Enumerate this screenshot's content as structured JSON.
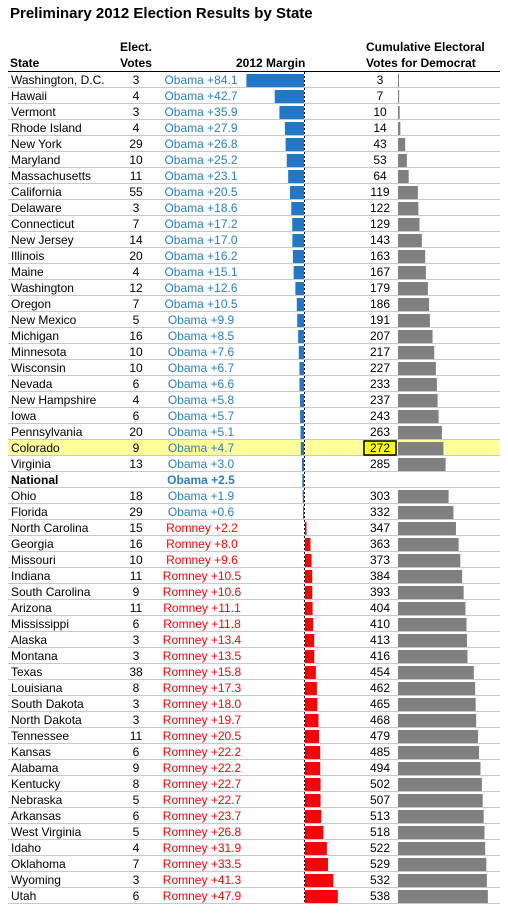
{
  "title": "Preliminary 2012 Election Results by State",
  "headers": {
    "state": "State",
    "votes_line1": "Elect.",
    "votes_line2": "Votes",
    "margin": "2012 Margin",
    "cumulative_line1": "Cumulative Electoral",
    "cumulative_line2": "Votes for Democrat"
  },
  "colors": {
    "obama": "#1f78c8",
    "obama_text": "#2a7fc9",
    "romney": "#ff0000",
    "cumulative_bar": "#808080",
    "highlight": "#ffff99",
    "highlight_box": "#ffff00"
  },
  "chart_data": {
    "type": "table",
    "columns": [
      "State",
      "Elect. Votes",
      "2012 Margin",
      "Cumulative Electoral Votes for Democrat"
    ],
    "rows": [
      {
        "state": "Washington, D.C.",
        "votes": 3,
        "party": "Obama",
        "margin": 84.1,
        "label": "Obama +84.1",
        "cumulative": 3
      },
      {
        "state": "Hawaii",
        "votes": 4,
        "party": "Obama",
        "margin": 42.7,
        "label": "Obama +42.7",
        "cumulative": 7
      },
      {
        "state": "Vermont",
        "votes": 3,
        "party": "Obama",
        "margin": 35.9,
        "label": "Obama +35.9",
        "cumulative": 10
      },
      {
        "state": "Rhode Island",
        "votes": 4,
        "party": "Obama",
        "margin": 27.9,
        "label": "Obama +27.9",
        "cumulative": 14
      },
      {
        "state": "New York",
        "votes": 29,
        "party": "Obama",
        "margin": 26.8,
        "label": "Obama +26.8",
        "cumulative": 43
      },
      {
        "state": "Maryland",
        "votes": 10,
        "party": "Obama",
        "margin": 25.2,
        "label": "Obama +25.2",
        "cumulative": 53
      },
      {
        "state": "Massachusetts",
        "votes": 11,
        "party": "Obama",
        "margin": 23.1,
        "label": "Obama +23.1",
        "cumulative": 64
      },
      {
        "state": "California",
        "votes": 55,
        "party": "Obama",
        "margin": 20.5,
        "label": "Obama +20.5",
        "cumulative": 119
      },
      {
        "state": "Delaware",
        "votes": 3,
        "party": "Obama",
        "margin": 18.6,
        "label": "Obama +18.6",
        "cumulative": 122
      },
      {
        "state": "Connecticut",
        "votes": 7,
        "party": "Obama",
        "margin": 17.2,
        "label": "Obama +17.2",
        "cumulative": 129
      },
      {
        "state": "New Jersey",
        "votes": 14,
        "party": "Obama",
        "margin": 17.0,
        "label": "Obama +17.0",
        "cumulative": 143
      },
      {
        "state": "Illinois",
        "votes": 20,
        "party": "Obama",
        "margin": 16.2,
        "label": "Obama +16.2",
        "cumulative": 163
      },
      {
        "state": "Maine",
        "votes": 4,
        "party": "Obama",
        "margin": 15.1,
        "label": "Obama +15.1",
        "cumulative": 167
      },
      {
        "state": "Washington",
        "votes": 12,
        "party": "Obama",
        "margin": 12.6,
        "label": "Obama +12.6",
        "cumulative": 179
      },
      {
        "state": "Oregon",
        "votes": 7,
        "party": "Obama",
        "margin": 10.5,
        "label": "Obama +10.5",
        "cumulative": 186
      },
      {
        "state": "New Mexico",
        "votes": 5,
        "party": "Obama",
        "margin": 9.9,
        "label": "Obama +9.9",
        "cumulative": 191
      },
      {
        "state": "Michigan",
        "votes": 16,
        "party": "Obama",
        "margin": 8.5,
        "label": "Obama +8.5",
        "cumulative": 207
      },
      {
        "state": "Minnesota",
        "votes": 10,
        "party": "Obama",
        "margin": 7.6,
        "label": "Obama +7.6",
        "cumulative": 217
      },
      {
        "state": "Wisconsin",
        "votes": 10,
        "party": "Obama",
        "margin": 6.7,
        "label": "Obama +6.7",
        "cumulative": 227
      },
      {
        "state": "Nevada",
        "votes": 6,
        "party": "Obama",
        "margin": 6.6,
        "label": "Obama +6.6",
        "cumulative": 233
      },
      {
        "state": "New Hampshire",
        "votes": 4,
        "party": "Obama",
        "margin": 5.8,
        "label": "Obama +5.8",
        "cumulative": 237
      },
      {
        "state": "Iowa",
        "votes": 6,
        "party": "Obama",
        "margin": 5.7,
        "label": "Obama +5.7",
        "cumulative": 243
      },
      {
        "state": "Pennsylvania",
        "votes": 20,
        "party": "Obama",
        "margin": 5.1,
        "label": "Obama +5.1",
        "cumulative": 263
      },
      {
        "state": "Colorado",
        "votes": 9,
        "party": "Obama",
        "margin": 4.7,
        "label": "Obama +4.7",
        "cumulative": 272,
        "highlight": true
      },
      {
        "state": "Virginia",
        "votes": 13,
        "party": "Obama",
        "margin": 3.0,
        "label": "Obama +3.0",
        "cumulative": 285
      },
      {
        "state": "National",
        "votes": null,
        "party": "Obama",
        "margin": 2.5,
        "label": "Obama +2.5",
        "cumulative": null,
        "national": true
      },
      {
        "state": "Ohio",
        "votes": 18,
        "party": "Obama",
        "margin": 1.9,
        "label": "Obama +1.9",
        "cumulative": 303
      },
      {
        "state": "Florida",
        "votes": 29,
        "party": "Obama",
        "margin": 0.6,
        "label": "Obama +0.6",
        "cumulative": 332
      },
      {
        "state": "North Carolina",
        "votes": 15,
        "party": "Romney",
        "margin": 2.2,
        "label": "Romney +2.2",
        "cumulative": 347
      },
      {
        "state": "Georgia",
        "votes": 16,
        "party": "Romney",
        "margin": 8.0,
        "label": "Romney +8.0",
        "cumulative": 363
      },
      {
        "state": "Missouri",
        "votes": 10,
        "party": "Romney",
        "margin": 9.6,
        "label": "Romney +9.6",
        "cumulative": 373
      },
      {
        "state": "Indiana",
        "votes": 11,
        "party": "Romney",
        "margin": 10.5,
        "label": "Romney +10.5",
        "cumulative": 384
      },
      {
        "state": "South Carolina",
        "votes": 9,
        "party": "Romney",
        "margin": 10.6,
        "label": "Romney +10.6",
        "cumulative": 393
      },
      {
        "state": "Arizona",
        "votes": 11,
        "party": "Romney",
        "margin": 11.1,
        "label": "Romney +11.1",
        "cumulative": 404
      },
      {
        "state": "Mississippi",
        "votes": 6,
        "party": "Romney",
        "margin": 11.8,
        "label": "Romney +11.8",
        "cumulative": 410
      },
      {
        "state": "Alaska",
        "votes": 3,
        "party": "Romney",
        "margin": 13.4,
        "label": "Romney +13.4",
        "cumulative": 413
      },
      {
        "state": "Montana",
        "votes": 3,
        "party": "Romney",
        "margin": 13.5,
        "label": "Romney +13.5",
        "cumulative": 416
      },
      {
        "state": "Texas",
        "votes": 38,
        "party": "Romney",
        "margin": 15.8,
        "label": "Romney +15.8",
        "cumulative": 454
      },
      {
        "state": "Louisiana",
        "votes": 8,
        "party": "Romney",
        "margin": 17.3,
        "label": "Romney +17.3",
        "cumulative": 462
      },
      {
        "state": "South Dakota",
        "votes": 3,
        "party": "Romney",
        "margin": 18.0,
        "label": "Romney +18.0",
        "cumulative": 465
      },
      {
        "state": "North Dakota",
        "votes": 3,
        "party": "Romney",
        "margin": 19.7,
        "label": "Romney +19.7",
        "cumulative": 468
      },
      {
        "state": "Tennessee",
        "votes": 11,
        "party": "Romney",
        "margin": 20.5,
        "label": "Romney +20.5",
        "cumulative": 479
      },
      {
        "state": "Kansas",
        "votes": 6,
        "party": "Romney",
        "margin": 22.2,
        "label": "Romney +22.2",
        "cumulative": 485
      },
      {
        "state": "Alabama",
        "votes": 9,
        "party": "Romney",
        "margin": 22.2,
        "label": "Romney +22.2",
        "cumulative": 494
      },
      {
        "state": "Kentucky",
        "votes": 8,
        "party": "Romney",
        "margin": 22.7,
        "label": "Romney +22.7",
        "cumulative": 502
      },
      {
        "state": "Nebraska",
        "votes": 5,
        "party": "Romney",
        "margin": 22.7,
        "label": "Romney +22.7",
        "cumulative": 507
      },
      {
        "state": "Arkansas",
        "votes": 6,
        "party": "Romney",
        "margin": 23.7,
        "label": "Romney +23.7",
        "cumulative": 513
      },
      {
        "state": "West Virginia",
        "votes": 5,
        "party": "Romney",
        "margin": 26.8,
        "label": "Romney +26.8",
        "cumulative": 518
      },
      {
        "state": "Idaho",
        "votes": 4,
        "party": "Romney",
        "margin": 31.9,
        "label": "Romney +31.9",
        "cumulative": 522
      },
      {
        "state": "Oklahoma",
        "votes": 7,
        "party": "Romney",
        "margin": 33.5,
        "label": "Romney +33.5",
        "cumulative": 529
      },
      {
        "state": "Wyoming",
        "votes": 3,
        "party": "Romney",
        "margin": 41.3,
        "label": "Romney +41.3",
        "cumulative": 532
      },
      {
        "state": "Utah",
        "votes": 6,
        "party": "Romney",
        "margin": 47.9,
        "label": "Romney +47.9",
        "cumulative": 538
      }
    ]
  }
}
